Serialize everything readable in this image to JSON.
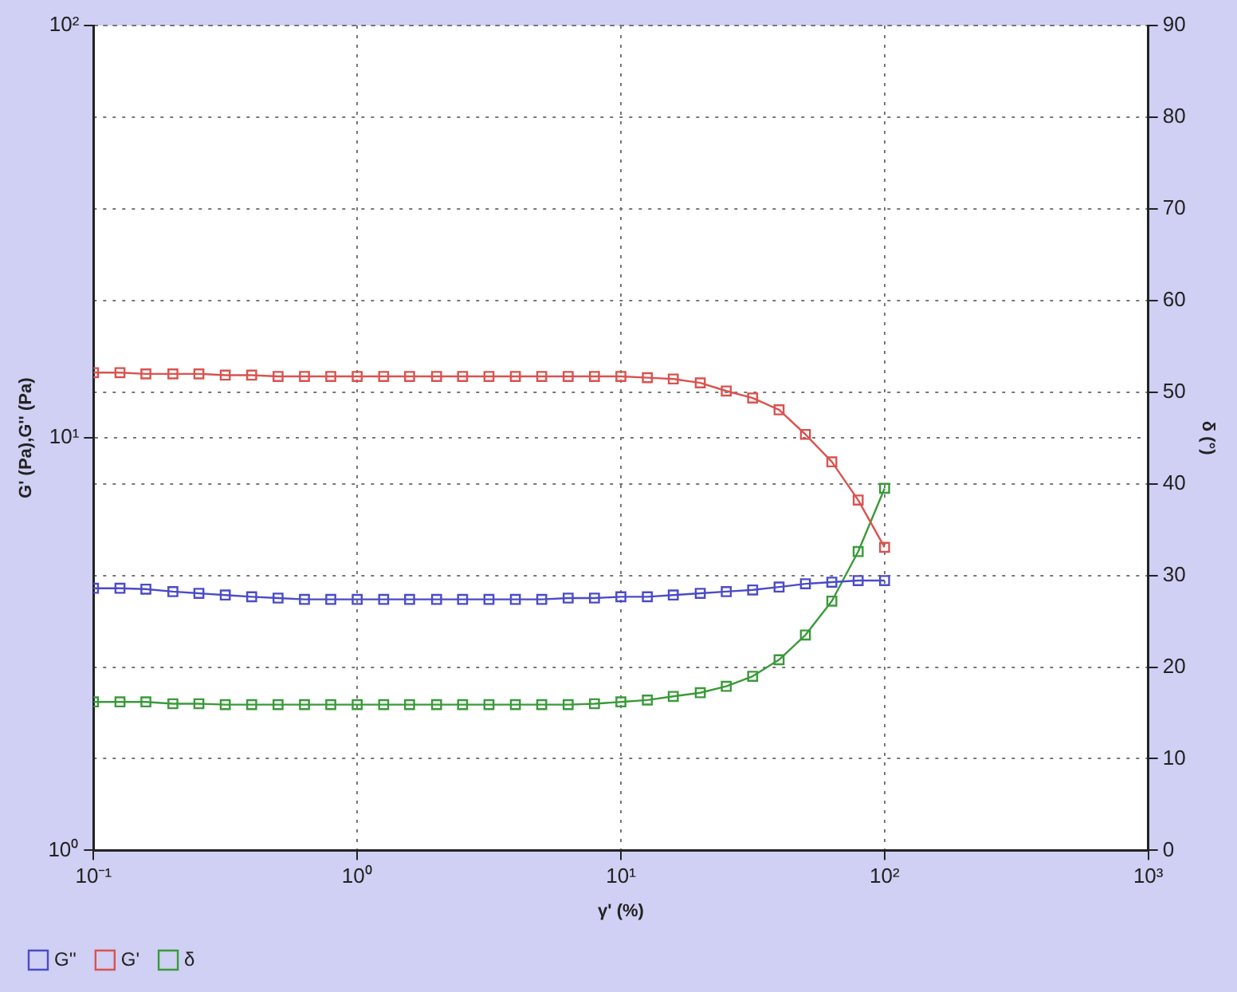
{
  "chart_data": {
    "type": "line",
    "xlabel": "γ' (%)",
    "ylabel": "G' (Pa),G'' (Pa)",
    "y2label": "δ (°)",
    "x": [
      0.1,
      0.126,
      0.158,
      0.2,
      0.251,
      0.316,
      0.398,
      0.501,
      0.631,
      0.794,
      1,
      1.26,
      1.58,
      2,
      2.51,
      3.16,
      3.98,
      5.01,
      6.31,
      7.94,
      10,
      12.6,
      15.8,
      20,
      25.1,
      31.6,
      39.8,
      50.1,
      63.1,
      79.4,
      100
    ],
    "series": [
      {
        "name": "G''",
        "color": "#4b4bc8",
        "values": [
          4.32,
          4.32,
          4.3,
          4.24,
          4.2,
          4.16,
          4.12,
          4.09,
          4.06,
          4.06,
          4.06,
          4.06,
          4.06,
          4.06,
          4.06,
          4.06,
          4.06,
          4.06,
          4.09,
          4.09,
          4.12,
          4.12,
          4.16,
          4.2,
          4.24,
          4.28,
          4.35,
          4.43,
          4.47,
          4.51,
          4.51
        ]
      },
      {
        "name": "G'",
        "color": "#d9534f",
        "values": [
          14.4,
          14.4,
          14.3,
          14.3,
          14.3,
          14.2,
          14.2,
          14.1,
          14.1,
          14.1,
          14.1,
          14.1,
          14.1,
          14.1,
          14.1,
          14.1,
          14.1,
          14.1,
          14.1,
          14.1,
          14.1,
          14.0,
          13.9,
          13.6,
          13.0,
          12.5,
          11.7,
          10.2,
          8.75,
          7.07,
          5.43
        ]
      },
      {
        "name": "δ",
        "color": "#3a9a3a",
        "axis": "y2",
        "values": [
          16.2,
          16.2,
          16.2,
          16.0,
          16.0,
          15.9,
          15.9,
          15.9,
          15.9,
          15.9,
          15.9,
          15.9,
          15.9,
          15.9,
          15.9,
          15.9,
          15.9,
          15.9,
          15.9,
          16.0,
          16.2,
          16.4,
          16.8,
          17.2,
          17.9,
          19.0,
          20.8,
          23.5,
          27.2,
          32.6,
          39.5
        ]
      }
    ],
    "log": "xy",
    "xlim": [
      0.1,
      1000
    ],
    "xticks": [
      {
        "value": 0.1,
        "label": "10⁻¹"
      },
      {
        "value": 1,
        "label": "10⁰"
      },
      {
        "value": 10,
        "label": "10¹"
      },
      {
        "value": 100,
        "label": "10²"
      },
      {
        "value": 1000,
        "label": "10³"
      }
    ],
    "ylim": [
      1,
      100
    ],
    "yticks": [
      {
        "value": 1,
        "label": "10⁰"
      },
      {
        "value": 10,
        "label": "10¹"
      },
      {
        "value": 100,
        "label": "10²"
      }
    ],
    "y2lim": [
      0,
      90
    ],
    "y2ticks": [
      0,
      10,
      20,
      30,
      40,
      50,
      60,
      70,
      80,
      90
    ],
    "grid": true,
    "legend": "bottom left",
    "marker": "square",
    "line_style": "solid"
  }
}
